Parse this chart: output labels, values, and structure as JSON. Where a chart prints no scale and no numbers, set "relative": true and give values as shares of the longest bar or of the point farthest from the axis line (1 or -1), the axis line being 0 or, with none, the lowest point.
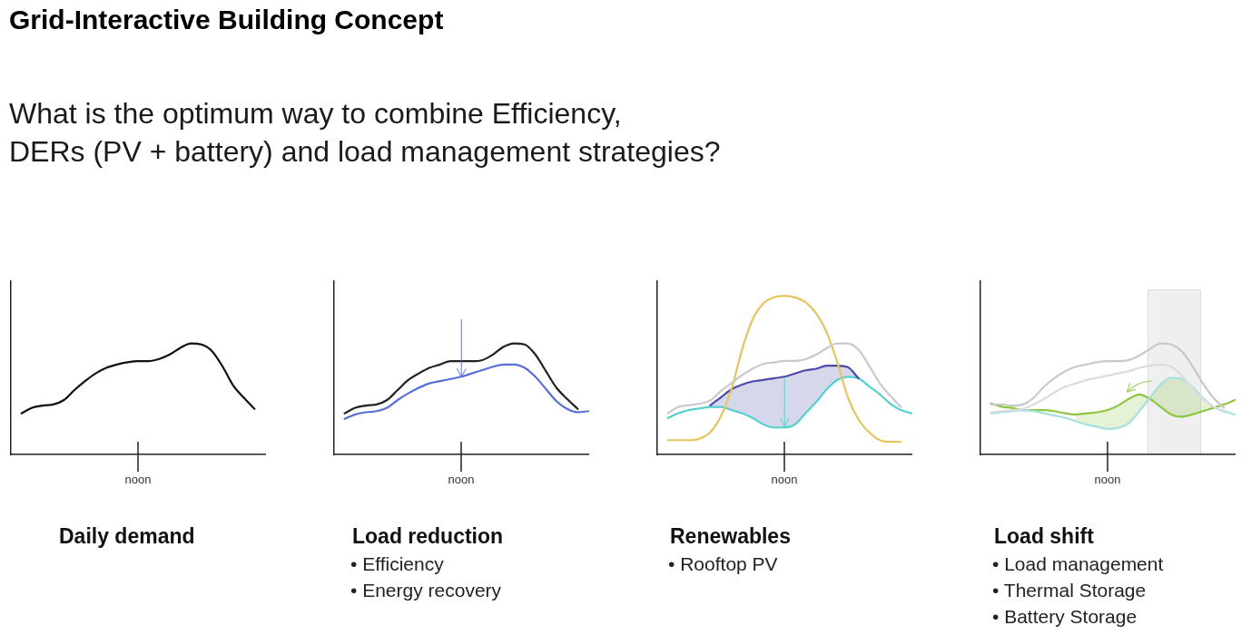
{
  "chart_data": [
    {
      "type": "other",
      "title": "Grid-Interactive Building Concept",
      "subtitle": "What is the optimum way to combine Efficiency,\nDERs (PV + battery) and load management strategies?"
    },
    {
      "type": "line",
      "title": "Daily demand",
      "xlabel": "noon",
      "relative": true,
      "categories": [
        null,
        null,
        null,
        null,
        null,
        null,
        null,
        null,
        null,
        null,
        null,
        null,
        null,
        null,
        null,
        null,
        null,
        null,
        null,
        null,
        null,
        null,
        null,
        null,
        null
      ],
      "series": [
        {
          "color": "#111111",
          "values": [
            null,
            0.37,
            0.42,
            0.44,
            0.45,
            0.49,
            0.58,
            0.66,
            0.73,
            0.78,
            0.81,
            0.83,
            0.84,
            0.84,
            0.86,
            0.9,
            0.96,
            1,
            0.99,
            0.93,
            0.79,
            0.62,
            0.51,
            0.41,
            null
          ]
        }
      ]
    },
    {
      "type": "line",
      "title": "Load reduction",
      "xlabel": "noon",
      "annotations": [
        "• Efficiency",
        "• Energy recovery"
      ],
      "relative": true,
      "categories": [
        null,
        null,
        null,
        null,
        null,
        null,
        null,
        null,
        null,
        null,
        null,
        null,
        null,
        null,
        null,
        null,
        null,
        null,
        null,
        null,
        null,
        null,
        null,
        null,
        null
      ],
      "series": [
        {
          "color": "#222222",
          "values": [
            null,
            0.37,
            0.42,
            0.44,
            0.45,
            0.49,
            0.58,
            0.67,
            0.73,
            0.78,
            0.81,
            0.84,
            0.84,
            0.84,
            0.85,
            0.9,
            0.97,
            1,
            0.99,
            0.9,
            0.75,
            0.6,
            0.5,
            0.41,
            null
          ]
        },
        {
          "color": "#5a6fd6",
          "values": [
            null,
            0.32,
            0.36,
            0.38,
            0.39,
            0.42,
            0.49,
            0.55,
            0.6,
            0.64,
            0.66,
            0.68,
            0.7,
            0.73,
            0.76,
            0.79,
            0.81,
            0.81,
            0.78,
            0.7,
            0.59,
            0.48,
            0.41,
            0.38,
            0.39
          ]
        }
      ]
    },
    {
      "type": "line",
      "title": "Renewables",
      "xlabel": "noon",
      "annotations": [
        "• Rooftop PV"
      ],
      "relative": true,
      "categories": [
        null,
        null,
        null,
        null,
        null,
        null,
        null,
        null,
        null,
        null,
        null,
        null,
        null,
        null,
        null,
        null,
        null,
        null,
        null,
        null,
        null,
        null,
        null,
        null,
        null
      ],
      "series": [
        {
          "color": "#c8c8d0",
          "values": [
            null,
            0.26,
            0.3,
            0.31,
            0.32,
            0.34,
            0.4,
            0.45,
            0.5,
            0.54,
            0.57,
            0.58,
            0.59,
            0.59,
            0.6,
            0.63,
            0.67,
            0.7,
            0.7,
            0.66,
            0.56,
            0.45,
            0.37,
            0.3,
            null
          ]
        },
        {
          "color": "#e6c35c",
          "values": [
            null,
            0.09,
            0.09,
            0.09,
            0.1,
            0.14,
            0.24,
            0.41,
            0.66,
            0.85,
            0.95,
            0.99,
            1,
            0.99,
            0.96,
            0.89,
            0.77,
            0.58,
            0.36,
            0.22,
            0.14,
            0.09,
            0.08,
            0.08,
            null
          ]
        },
        {
          "color": "#4b4aa8",
          "values": [
            null,
            null,
            null,
            null,
            null,
            0.31,
            0.36,
            0.41,
            0.44,
            0.46,
            0.47,
            0.48,
            0.49,
            0.51,
            0.53,
            0.54,
            0.56,
            0.56,
            0.55,
            0.48,
            null,
            null,
            null,
            null,
            null
          ],
          "lower": [
            null,
            null,
            null,
            null,
            null,
            0.3,
            0.3,
            0.28,
            0.26,
            0.23,
            0.19,
            0.17,
            0.17,
            0.19,
            0.26,
            0.33,
            0.41,
            0.47,
            0.49,
            0.48,
            null,
            null,
            null,
            null,
            null
          ],
          "upper": [
            null,
            null,
            null,
            null,
            null,
            0.31,
            0.36,
            0.41,
            0.44,
            0.46,
            0.47,
            0.48,
            0.49,
            0.51,
            0.53,
            0.54,
            0.56,
            0.56,
            0.55,
            0.48,
            null,
            null,
            null,
            null,
            null
          ]
        },
        {
          "color": "#55d0cf",
          "values": [
            null,
            0.23,
            0.26,
            0.28,
            0.29,
            0.3,
            0.3,
            0.28,
            0.26,
            0.23,
            0.19,
            0.17,
            0.17,
            0.19,
            0.26,
            0.33,
            0.41,
            0.47,
            0.49,
            0.48,
            0.43,
            0.38,
            0.32,
            0.28,
            0.26
          ]
        }
      ]
    },
    {
      "type": "line",
      "title": "Load shift",
      "xlabel": "noon",
      "annotations": [
        "• Load management",
        "• Thermal Storage",
        "• Battery Storage"
      ],
      "relative": true,
      "categories": [
        null,
        null,
        null,
        null,
        null,
        null,
        null,
        null,
        null,
        null,
        null,
        null,
        null,
        null,
        null,
        null,
        null,
        null,
        null,
        null,
        null,
        null,
        null,
        null,
        null
      ],
      "series": [
        {
          "color": "#c9c9c9",
          "values": [
            null,
            0.45,
            0.45,
            0.44,
            0.45,
            0.51,
            0.61,
            0.69,
            0.75,
            0.79,
            0.81,
            0.83,
            0.84,
            0.84,
            0.85,
            0.89,
            0.95,
            1,
            0.99,
            0.93,
            0.8,
            0.64,
            0.51,
            0.42,
            null
          ]
        },
        {
          "color": "#dcdce0",
          "values": [
            null,
            0.38,
            0.39,
            0.4,
            0.41,
            0.45,
            0.5,
            0.56,
            0.61,
            0.64,
            0.67,
            0.69,
            0.71,
            0.73,
            0.75,
            0.78,
            0.8,
            0.81,
            0.79,
            0.71,
            0.6,
            0.5,
            0.43,
            0.38,
            null
          ]
        },
        {
          "color": "#a8e0e0",
          "values": [
            null,
            0.37,
            0.38,
            0.39,
            0.4,
            0.39,
            0.37,
            0.35,
            0.33,
            0.3,
            0.27,
            0.25,
            0.23,
            0.24,
            0.28,
            0.39,
            0.51,
            0.63,
            0.69,
            0.68,
            0.61,
            0.51,
            0.43,
            0.39,
            0.36
          ]
        },
        {
          "color": "#8dc63f",
          "values": [
            null,
            0.46,
            0.43,
            0.42,
            0.4,
            0.4,
            0.4,
            0.39,
            0.37,
            0.36,
            0.37,
            0.38,
            0.4,
            0.44,
            0.5,
            0.54,
            0.5,
            0.43,
            0.36,
            0.34,
            0.36,
            0.39,
            0.42,
            0.45,
            0.49
          ],
          "lower": [
            null,
            null,
            null,
            null,
            null,
            null,
            null,
            null,
            null,
            0.3,
            0.27,
            0.25,
            0.23,
            0.24,
            0.28,
            0.39,
            0.5,
            0.43,
            0.36,
            0.34,
            0.36,
            0.39,
            0.42,
            null,
            null
          ],
          "upper": [
            null,
            null,
            null,
            null,
            null,
            null,
            null,
            null,
            null,
            0.36,
            0.37,
            0.38,
            0.4,
            0.44,
            0.5,
            0.54,
            0.51,
            0.63,
            0.69,
            0.68,
            0.61,
            0.51,
            0.43,
            null,
            null
          ]
        }
      ]
    }
  ]
}
